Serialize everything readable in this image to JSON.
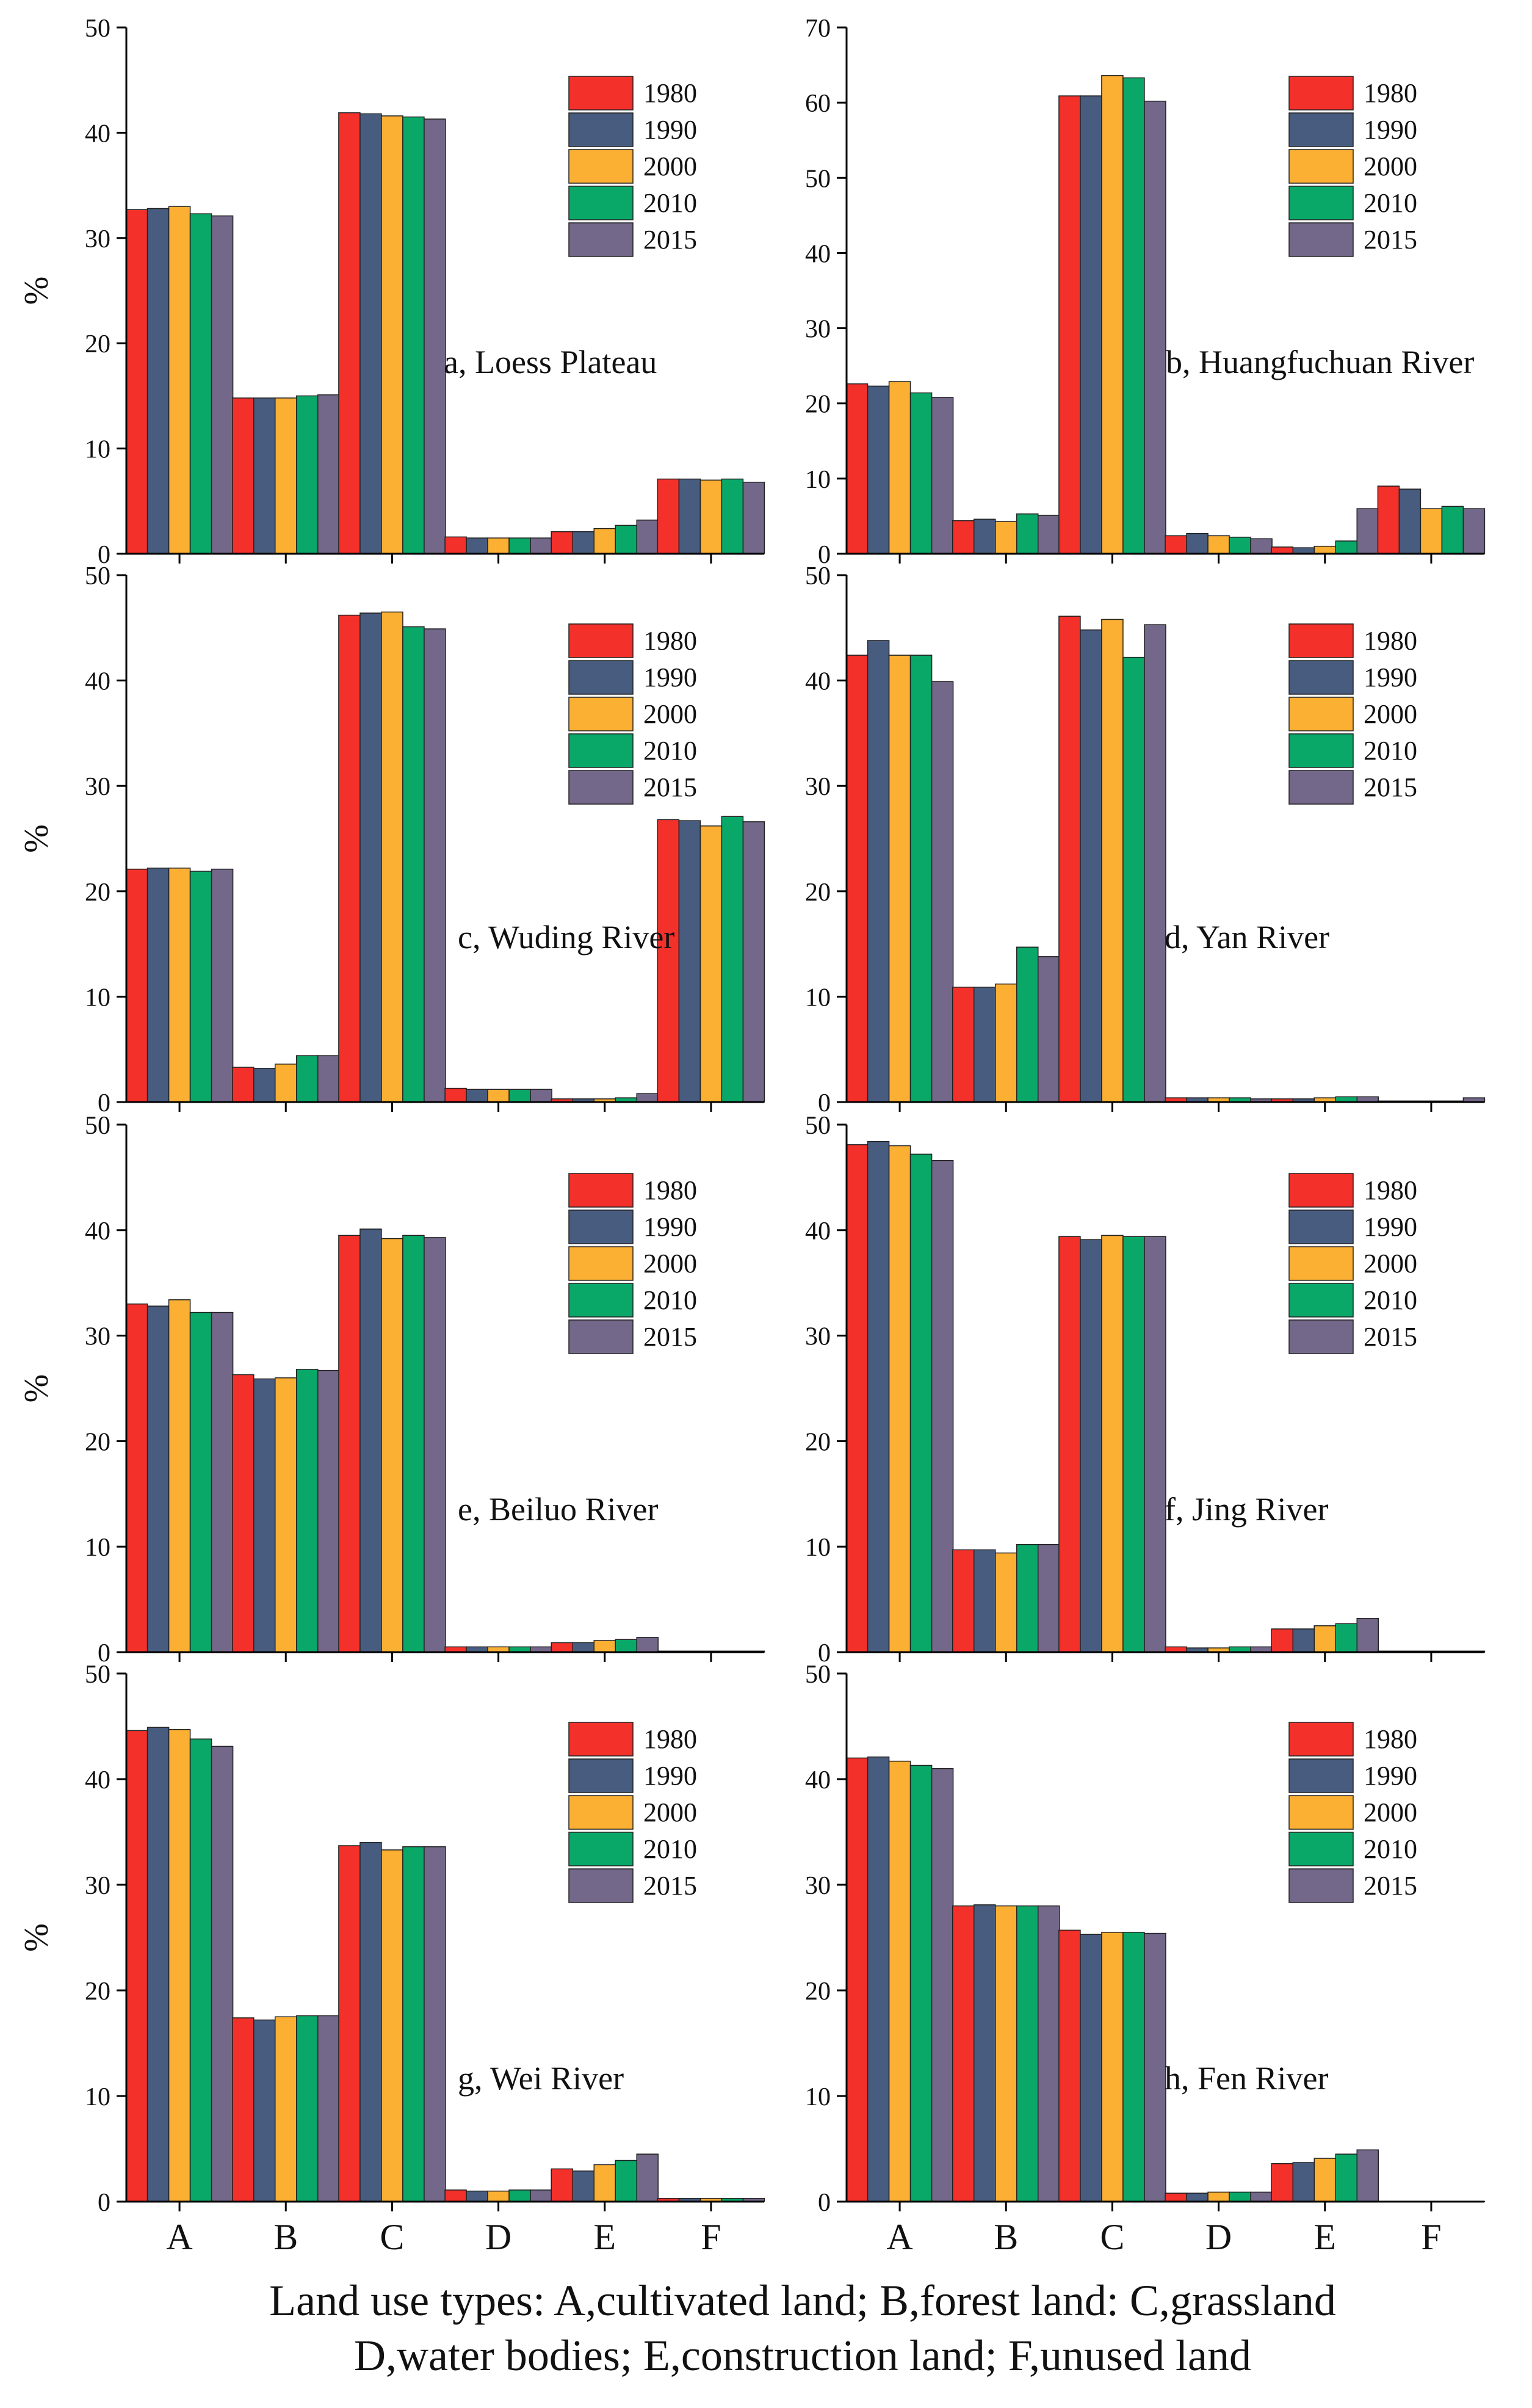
{
  "caption": {
    "line1": "Land use types: A,cultivated land; B,forest land: C,grassland",
    "line2": "D,water bodies; E,construction land; F,unused land"
  },
  "colors": {
    "1980": "#f4302b",
    "1990": "#485c80",
    "2000": "#fbaf33",
    "2010": "#0aa868",
    "2015": "#73678a"
  },
  "chart_data": [
    {
      "type": "bar",
      "title": "a, Loess Plateau",
      "categories": [
        "A",
        "B",
        "C",
        "D",
        "E",
        "F"
      ],
      "ylabel": "%",
      "ylim": [
        0,
        50
      ],
      "yticks": [
        0,
        10,
        20,
        30,
        40,
        50
      ],
      "legend": [
        "1980",
        "1990",
        "2000",
        "2010",
        "2015"
      ],
      "series": [
        {
          "name": "1980",
          "values": [
            32.7,
            14.8,
            41.9,
            1.6,
            2.1,
            7.1
          ]
        },
        {
          "name": "1990",
          "values": [
            32.8,
            14.8,
            41.8,
            1.5,
            2.1,
            7.1
          ]
        },
        {
          "name": "2000",
          "values": [
            33.0,
            14.8,
            41.6,
            1.5,
            2.4,
            7.0
          ]
        },
        {
          "name": "2010",
          "values": [
            32.3,
            15.0,
            41.5,
            1.5,
            2.7,
            7.1
          ]
        },
        {
          "name": "2015",
          "values": [
            32.1,
            15.1,
            41.3,
            1.5,
            3.2,
            6.8
          ]
        }
      ]
    },
    {
      "type": "bar",
      "title": "b, Huangfuchuan River",
      "categories": [
        "A",
        "B",
        "C",
        "D",
        "E",
        "F"
      ],
      "ylabel": "",
      "ylim": [
        0,
        70
      ],
      "yticks": [
        0,
        10,
        20,
        30,
        40,
        50,
        60,
        70
      ],
      "legend": [
        "1980",
        "1990",
        "2000",
        "2010",
        "2015"
      ],
      "series": [
        {
          "name": "1980",
          "values": [
            22.6,
            4.4,
            60.9,
            2.4,
            0.9,
            9.0
          ]
        },
        {
          "name": "1990",
          "values": [
            22.3,
            4.6,
            60.9,
            2.7,
            0.8,
            8.6
          ]
        },
        {
          "name": "2000",
          "values": [
            22.9,
            4.3,
            63.6,
            2.4,
            1.0,
            6.0
          ]
        },
        {
          "name": "2010",
          "values": [
            21.4,
            5.3,
            63.3,
            2.2,
            1.7,
            6.3
          ]
        },
        {
          "name": "2015",
          "values": [
            20.8,
            5.1,
            60.2,
            2.0,
            6.0,
            6.0
          ]
        }
      ]
    },
    {
      "type": "bar",
      "title": "c, Wuding River",
      "categories": [
        "A",
        "B",
        "C",
        "D",
        "E",
        "F"
      ],
      "ylabel": "%",
      "ylim": [
        0,
        50
      ],
      "yticks": [
        0,
        10,
        20,
        30,
        40,
        50
      ],
      "legend": [
        "1980",
        "1990",
        "2000",
        "2010",
        "2015"
      ],
      "series": [
        {
          "name": "1980",
          "values": [
            22.1,
            3.3,
            46.2,
            1.3,
            0.3,
            26.8
          ]
        },
        {
          "name": "1990",
          "values": [
            22.2,
            3.2,
            46.4,
            1.2,
            0.3,
            26.7
          ]
        },
        {
          "name": "2000",
          "values": [
            22.2,
            3.6,
            46.5,
            1.2,
            0.3,
            26.2
          ]
        },
        {
          "name": "2010",
          "values": [
            21.9,
            4.4,
            45.1,
            1.2,
            0.4,
            27.1
          ]
        },
        {
          "name": "2015",
          "values": [
            22.1,
            4.4,
            44.9,
            1.2,
            0.8,
            26.6
          ]
        }
      ]
    },
    {
      "type": "bar",
      "title": "d, Yan River",
      "categories": [
        "A",
        "B",
        "C",
        "D",
        "E",
        "F"
      ],
      "ylabel": "",
      "ylim": [
        0,
        50
      ],
      "yticks": [
        0,
        10,
        20,
        30,
        40,
        50
      ],
      "legend": [
        "1980",
        "1990",
        "2000",
        "2010",
        "2015"
      ],
      "series": [
        {
          "name": "1980",
          "values": [
            42.4,
            10.9,
            46.1,
            0.4,
            0.3,
            0.1
          ]
        },
        {
          "name": "1990",
          "values": [
            43.8,
            10.9,
            44.8,
            0.4,
            0.3,
            0.1
          ]
        },
        {
          "name": "2000",
          "values": [
            42.4,
            11.2,
            45.8,
            0.4,
            0.4,
            0.1
          ]
        },
        {
          "name": "2010",
          "values": [
            42.4,
            14.7,
            42.2,
            0.4,
            0.5,
            0.1
          ]
        },
        {
          "name": "2015",
          "values": [
            39.9,
            13.8,
            45.3,
            0.3,
            0.5,
            0.4
          ]
        }
      ]
    },
    {
      "type": "bar",
      "title": "e, Beiluo River",
      "categories": [
        "A",
        "B",
        "C",
        "D",
        "E",
        "F"
      ],
      "ylabel": "%",
      "ylim": [
        0,
        50
      ],
      "yticks": [
        0,
        10,
        20,
        30,
        40,
        50
      ],
      "legend": [
        "1980",
        "1990",
        "2000",
        "2010",
        "2015"
      ],
      "series": [
        {
          "name": "1980",
          "values": [
            33.0,
            26.3,
            39.5,
            0.5,
            0.9,
            0.1
          ]
        },
        {
          "name": "1990",
          "values": [
            32.8,
            25.9,
            40.1,
            0.5,
            0.9,
            0.1
          ]
        },
        {
          "name": "2000",
          "values": [
            33.4,
            26.0,
            39.2,
            0.5,
            1.1,
            0.1
          ]
        },
        {
          "name": "2010",
          "values": [
            32.2,
            26.8,
            39.5,
            0.5,
            1.2,
            0.1
          ]
        },
        {
          "name": "2015",
          "values": [
            32.2,
            26.7,
            39.3,
            0.5,
            1.4,
            0.1
          ]
        }
      ]
    },
    {
      "type": "bar",
      "title": "f, Jing River",
      "categories": [
        "A",
        "B",
        "C",
        "D",
        "E",
        "F"
      ],
      "ylabel": "",
      "ylim": [
        0,
        50
      ],
      "yticks": [
        0,
        10,
        20,
        30,
        40,
        50
      ],
      "legend": [
        "1980",
        "1990",
        "2000",
        "2010",
        "2015"
      ],
      "series": [
        {
          "name": "1980",
          "values": [
            48.1,
            9.7,
            39.4,
            0.5,
            2.2,
            0.1
          ]
        },
        {
          "name": "1990",
          "values": [
            48.4,
            9.7,
            39.1,
            0.4,
            2.2,
            0.1
          ]
        },
        {
          "name": "2000",
          "values": [
            48.0,
            9.4,
            39.5,
            0.4,
            2.5,
            0.1
          ]
        },
        {
          "name": "2010",
          "values": [
            47.2,
            10.2,
            39.4,
            0.5,
            2.7,
            0.1
          ]
        },
        {
          "name": "2015",
          "values": [
            46.6,
            10.2,
            39.4,
            0.5,
            3.2,
            0.1
          ]
        }
      ]
    },
    {
      "type": "bar",
      "title": "g, Wei River",
      "categories": [
        "A",
        "B",
        "C",
        "D",
        "E",
        "F"
      ],
      "ylabel": "%",
      "ylim": [
        0,
        50
      ],
      "yticks": [
        0,
        10,
        20,
        30,
        40,
        50
      ],
      "legend": [
        "1980",
        "1990",
        "2000",
        "2010",
        "2015"
      ],
      "series": [
        {
          "name": "1980",
          "values": [
            44.6,
            17.4,
            33.7,
            1.1,
            3.1,
            0.3
          ]
        },
        {
          "name": "1990",
          "values": [
            44.9,
            17.2,
            34.0,
            1.0,
            2.9,
            0.3
          ]
        },
        {
          "name": "2000",
          "values": [
            44.7,
            17.5,
            33.3,
            1.0,
            3.5,
            0.3
          ]
        },
        {
          "name": "2010",
          "values": [
            43.8,
            17.6,
            33.6,
            1.1,
            3.9,
            0.3
          ]
        },
        {
          "name": "2015",
          "values": [
            43.1,
            17.6,
            33.6,
            1.1,
            4.5,
            0.3
          ]
        }
      ]
    },
    {
      "type": "bar",
      "title": "h, Fen River",
      "categories": [
        "A",
        "B",
        "C",
        "D",
        "E",
        "F"
      ],
      "ylabel": "",
      "ylim": [
        0,
        50
      ],
      "yticks": [
        0,
        10,
        20,
        30,
        40,
        50
      ],
      "legend": [
        "1980",
        "1990",
        "2000",
        "2010",
        "2015"
      ],
      "series": [
        {
          "name": "1980",
          "values": [
            42.0,
            28.0,
            25.7,
            0.8,
            3.6,
            0.0
          ]
        },
        {
          "name": "1990",
          "values": [
            42.1,
            28.1,
            25.3,
            0.8,
            3.7,
            0.0
          ]
        },
        {
          "name": "2000",
          "values": [
            41.7,
            28.0,
            25.5,
            0.9,
            4.1,
            0.0
          ]
        },
        {
          "name": "2010",
          "values": [
            41.3,
            28.0,
            25.5,
            0.9,
            4.5,
            0.0
          ]
        },
        {
          "name": "2015",
          "values": [
            41.0,
            28.0,
            25.4,
            0.9,
            4.9,
            0.0
          ]
        }
      ]
    }
  ]
}
